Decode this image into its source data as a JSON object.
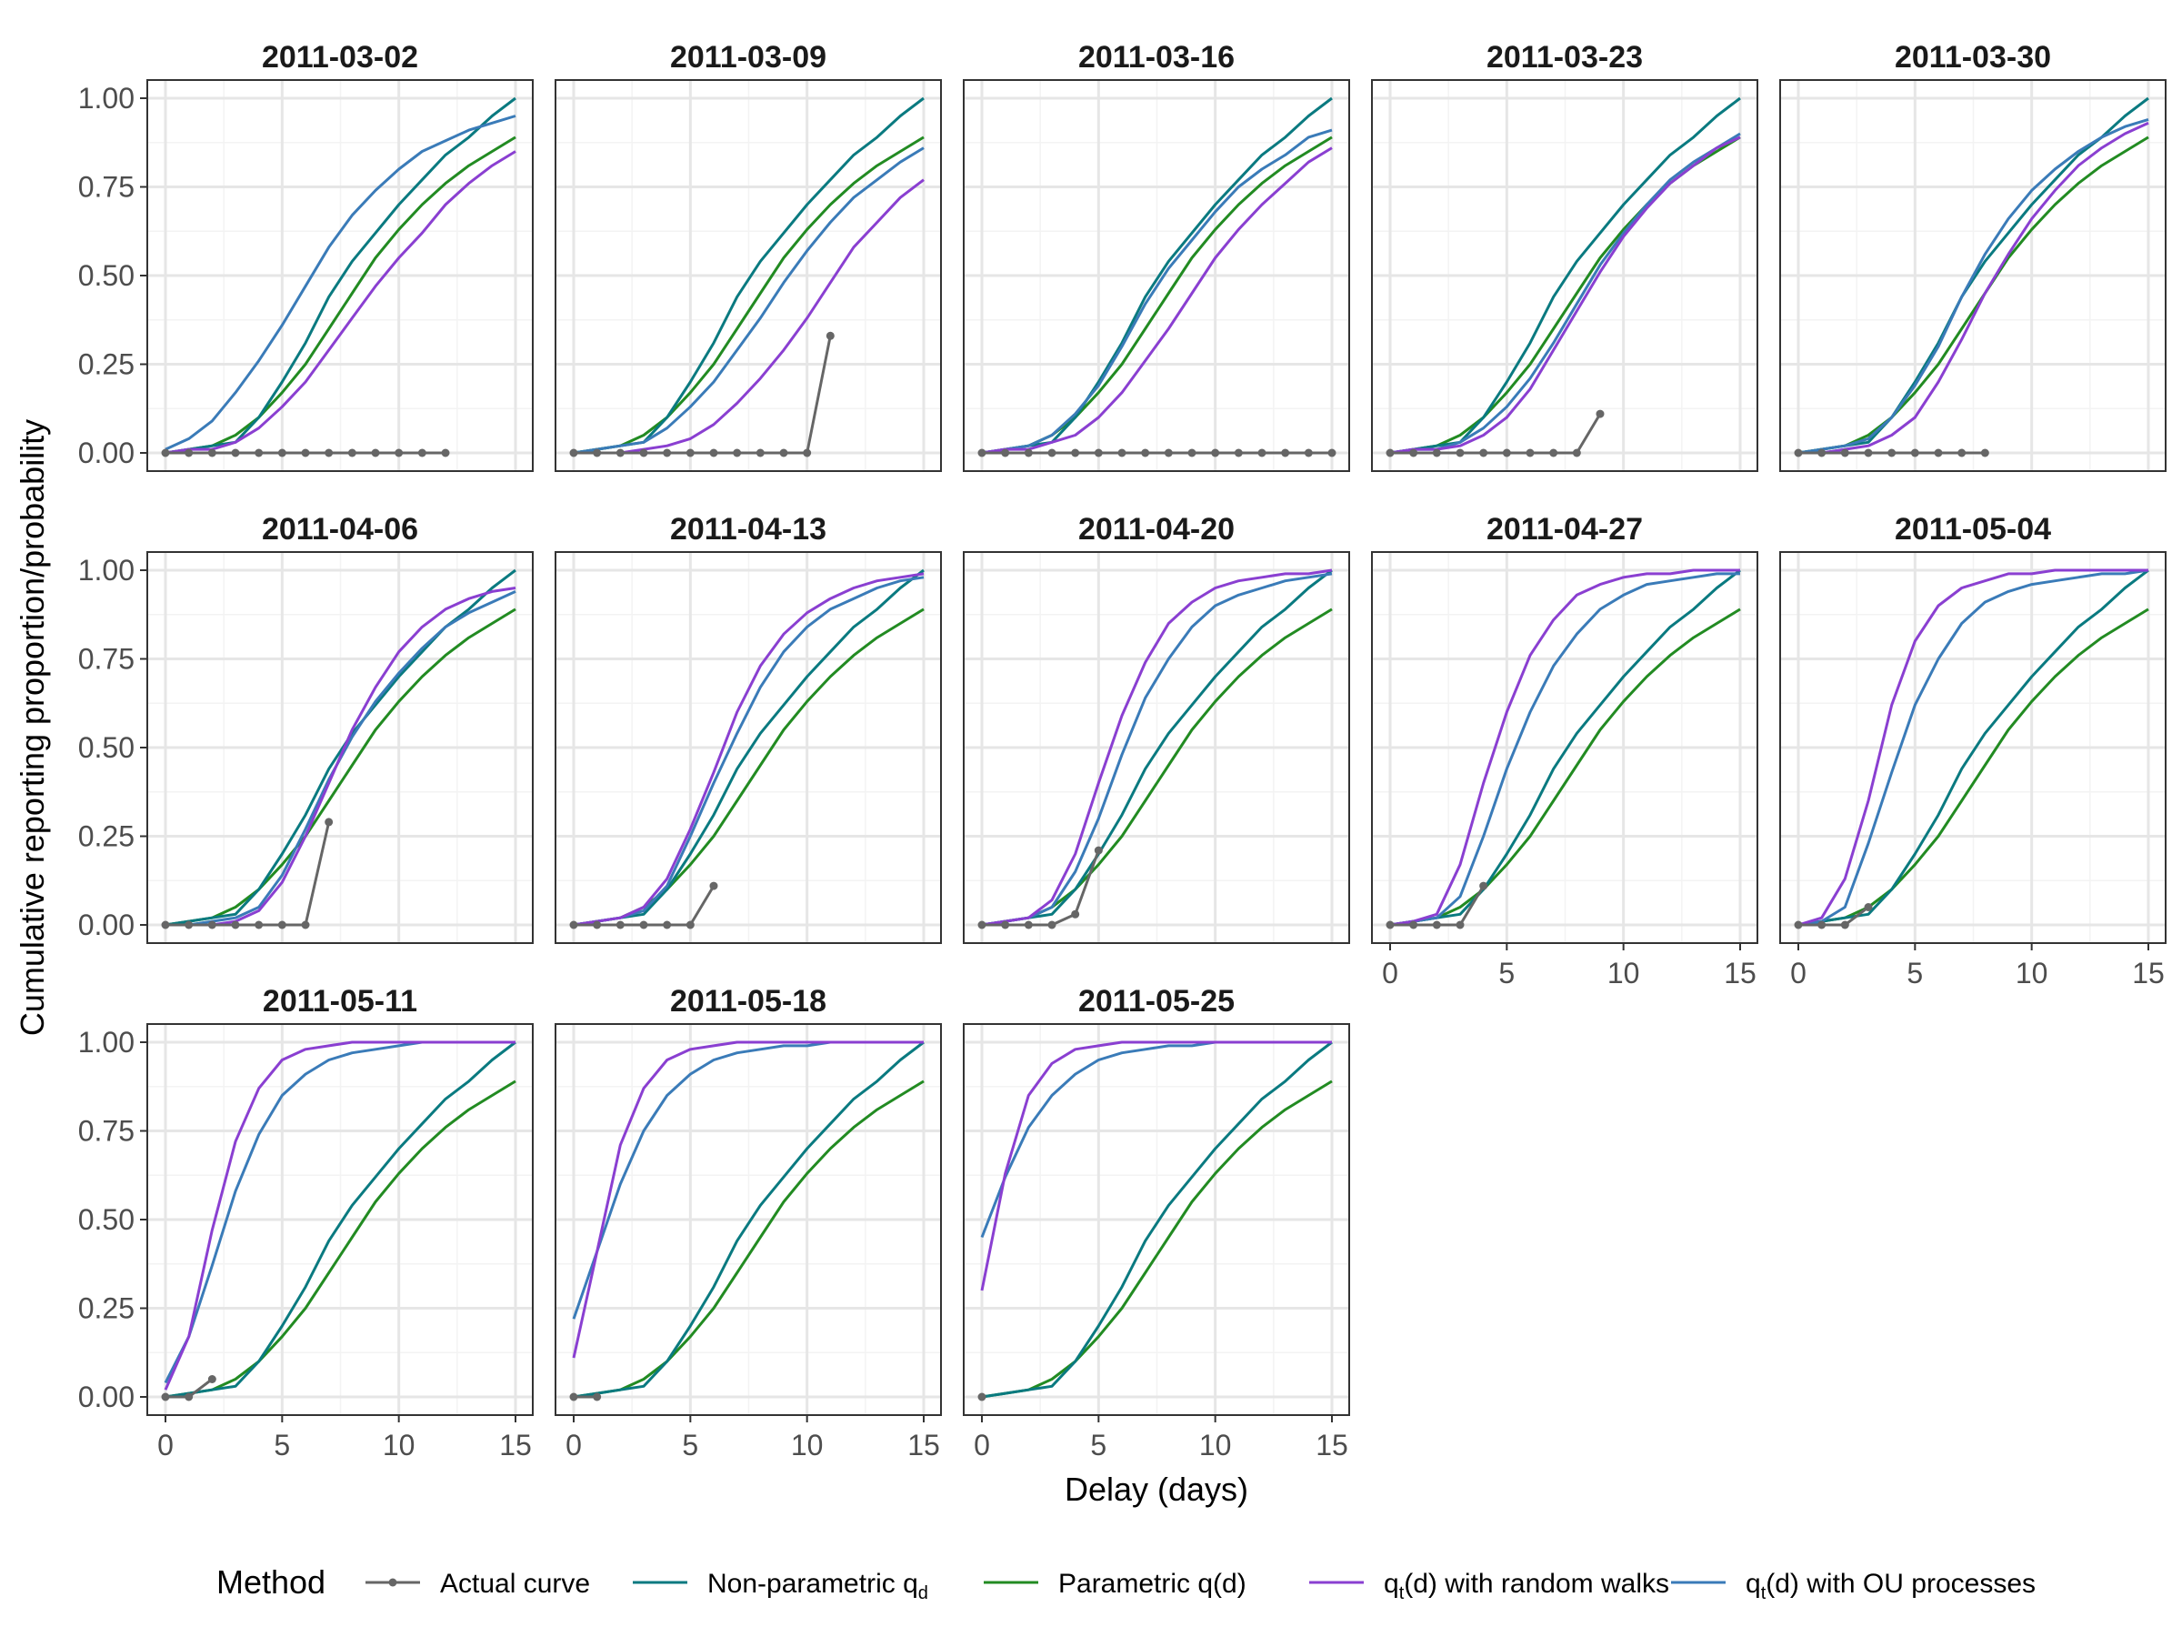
{
  "chart_data": {
    "type": "line",
    "facet_layout": "5 columns x 3 rows",
    "xlabel": "Delay (days)",
    "ylabel": "Cumulative reporting proportion/probability",
    "xlim": [
      0,
      15
    ],
    "ylim": [
      0,
      1
    ],
    "x_ticks": [
      0,
      5,
      10,
      15
    ],
    "x_tick_labels": [
      "0",
      "5",
      "10",
      "15"
    ],
    "y_ticks": [
      0,
      0.25,
      0.5,
      0.75,
      1
    ],
    "y_tick_labels": [
      "0.00",
      "0.25",
      "0.50",
      "0.75",
      "1.00"
    ],
    "grid": true,
    "legend": {
      "position": "bottom",
      "title": "Method",
      "items": [
        {
          "key": "actual",
          "label": "Actual curve",
          "color": "#666666",
          "marker": "point"
        },
        {
          "key": "nonparam",
          "label": "Non-parametric q",
          "sub": "d",
          "color": "#0a7a80"
        },
        {
          "key": "param",
          "label": "Parametric q(d)",
          "color": "#228b22"
        },
        {
          "key": "rw",
          "label_pre": "q",
          "sub": "t",
          "label_post": "(d) with random walks",
          "color": "#8a3fd1"
        },
        {
          "key": "ou",
          "label_pre": "q",
          "sub": "t",
          "label_post": "(d) with OU processes",
          "color": "#3a7bb8"
        }
      ]
    },
    "x": [
      0,
      1,
      2,
      3,
      4,
      5,
      6,
      7,
      8,
      9,
      10,
      11,
      12,
      13,
      14,
      15
    ],
    "shared_series": {
      "nonparam": [
        0,
        0.01,
        0.02,
        0.03,
        0.1,
        0.2,
        0.31,
        0.44,
        0.54,
        0.62,
        0.7,
        0.77,
        0.84,
        0.89,
        0.95,
        1.0
      ],
      "param": [
        0,
        0.01,
        0.02,
        0.05,
        0.1,
        0.17,
        0.25,
        0.35,
        0.45,
        0.55,
        0.63,
        0.7,
        0.76,
        0.81,
        0.85,
        0.89
      ]
    },
    "panels": [
      {
        "title": "2011-03-02",
        "actual": [
          0,
          0,
          0,
          0,
          0,
          0,
          0,
          0,
          0,
          0,
          0,
          0,
          0
        ],
        "rw": [
          0,
          0.01,
          0.01,
          0.03,
          0.07,
          0.13,
          0.2,
          0.29,
          0.38,
          0.47,
          0.55,
          0.62,
          0.7,
          0.76,
          0.81,
          0.85
        ],
        "ou": [
          0.01,
          0.04,
          0.09,
          0.17,
          0.26,
          0.36,
          0.47,
          0.58,
          0.67,
          0.74,
          0.8,
          0.85,
          0.88,
          0.91,
          0.93,
          0.95
        ]
      },
      {
        "title": "2011-03-09",
        "actual": [
          0,
          0,
          0,
          0,
          0,
          0,
          0,
          0,
          0,
          0,
          0,
          0.33
        ],
        "rw": [
          0,
          0,
          0,
          0.01,
          0.02,
          0.04,
          0.08,
          0.14,
          0.21,
          0.29,
          0.38,
          0.48,
          0.58,
          0.65,
          0.72,
          0.77
        ],
        "ou": [
          0,
          0.01,
          0.02,
          0.03,
          0.07,
          0.13,
          0.2,
          0.29,
          0.38,
          0.48,
          0.57,
          0.65,
          0.72,
          0.77,
          0.82,
          0.86
        ]
      },
      {
        "title": "2011-03-16",
        "actual": [
          0,
          0,
          0,
          0,
          0,
          0,
          0,
          0,
          0,
          0,
          0,
          0,
          0,
          0,
          0,
          0
        ],
        "rw": [
          0,
          0.01,
          0.01,
          0.03,
          0.05,
          0.1,
          0.17,
          0.26,
          0.35,
          0.45,
          0.55,
          0.63,
          0.7,
          0.76,
          0.82,
          0.86
        ],
        "ou": [
          0,
          0.01,
          0.02,
          0.05,
          0.11,
          0.19,
          0.3,
          0.42,
          0.52,
          0.6,
          0.68,
          0.75,
          0.8,
          0.84,
          0.89,
          0.91
        ]
      },
      {
        "title": "2011-03-23",
        "actual": [
          0,
          0,
          0,
          0,
          0,
          0,
          0,
          0,
          0,
          0.11
        ],
        "rw": [
          0,
          0.01,
          0.01,
          0.02,
          0.05,
          0.1,
          0.18,
          0.29,
          0.4,
          0.51,
          0.61,
          0.69,
          0.76,
          0.81,
          0.86,
          0.89
        ],
        "ou": [
          0,
          0.01,
          0.01,
          0.03,
          0.07,
          0.13,
          0.21,
          0.31,
          0.42,
          0.53,
          0.62,
          0.7,
          0.77,
          0.82,
          0.86,
          0.9
        ]
      },
      {
        "title": "2011-03-30",
        "actual": [
          0,
          0,
          0,
          0,
          0,
          0,
          0,
          0,
          0
        ],
        "rw": [
          0,
          0,
          0.01,
          0.02,
          0.05,
          0.1,
          0.2,
          0.32,
          0.45,
          0.56,
          0.66,
          0.74,
          0.81,
          0.86,
          0.9,
          0.93
        ],
        "ou": [
          0,
          0.01,
          0.02,
          0.04,
          0.1,
          0.19,
          0.3,
          0.44,
          0.56,
          0.66,
          0.74,
          0.8,
          0.85,
          0.89,
          0.92,
          0.94
        ]
      },
      {
        "title": "2011-04-06",
        "actual": [
          0,
          0,
          0,
          0,
          0,
          0,
          0,
          0.29
        ],
        "rw": [
          0,
          0,
          0,
          0.01,
          0.04,
          0.12,
          0.25,
          0.4,
          0.55,
          0.67,
          0.77,
          0.84,
          0.89,
          0.92,
          0.94,
          0.95
        ],
        "ou": [
          0,
          0,
          0.01,
          0.02,
          0.05,
          0.14,
          0.27,
          0.41,
          0.53,
          0.63,
          0.71,
          0.78,
          0.84,
          0.88,
          0.91,
          0.94
        ]
      },
      {
        "title": "2011-04-13",
        "actual": [
          0,
          0,
          0,
          0,
          0,
          0,
          0.11
        ],
        "rw": [
          0,
          0.01,
          0.02,
          0.05,
          0.13,
          0.27,
          0.43,
          0.6,
          0.73,
          0.82,
          0.88,
          0.92,
          0.95,
          0.97,
          0.98,
          0.99
        ],
        "ou": [
          0,
          0.01,
          0.02,
          0.04,
          0.11,
          0.25,
          0.4,
          0.54,
          0.67,
          0.77,
          0.84,
          0.89,
          0.92,
          0.95,
          0.97,
          0.98
        ]
      },
      {
        "title": "2011-04-20",
        "actual": [
          0,
          0,
          0,
          0,
          0.03,
          0.21
        ],
        "rw": [
          0,
          0.01,
          0.02,
          0.07,
          0.2,
          0.4,
          0.59,
          0.74,
          0.85,
          0.91,
          0.95,
          0.97,
          0.98,
          0.99,
          0.99,
          1.0
        ],
        "ou": [
          0,
          0.01,
          0.02,
          0.05,
          0.15,
          0.3,
          0.48,
          0.64,
          0.75,
          0.84,
          0.9,
          0.93,
          0.95,
          0.97,
          0.98,
          0.99
        ]
      },
      {
        "title": "2011-04-27",
        "actual": [
          0,
          0,
          0,
          0,
          0.11
        ],
        "rw": [
          0,
          0.01,
          0.03,
          0.17,
          0.4,
          0.6,
          0.76,
          0.86,
          0.93,
          0.96,
          0.98,
          0.99,
          0.99,
          1.0,
          1.0,
          1.0
        ],
        "ou": [
          0,
          0.01,
          0.02,
          0.08,
          0.25,
          0.44,
          0.6,
          0.73,
          0.82,
          0.89,
          0.93,
          0.96,
          0.97,
          0.98,
          0.99,
          0.99
        ]
      },
      {
        "title": "2011-05-04",
        "actual": [
          0,
          0,
          0,
          0.05
        ],
        "rw": [
          0,
          0.02,
          0.13,
          0.35,
          0.62,
          0.8,
          0.9,
          0.95,
          0.97,
          0.99,
          0.99,
          1.0,
          1.0,
          1.0,
          1.0,
          1.0
        ],
        "ou": [
          0,
          0.01,
          0.05,
          0.23,
          0.43,
          0.62,
          0.75,
          0.85,
          0.91,
          0.94,
          0.96,
          0.97,
          0.98,
          0.99,
          0.99,
          1.0
        ]
      },
      {
        "title": "2011-05-11",
        "actual": [
          0,
          0,
          0.05
        ],
        "rw": [
          0.02,
          0.17,
          0.47,
          0.72,
          0.87,
          0.95,
          0.98,
          0.99,
          1.0,
          1.0,
          1.0,
          1.0,
          1.0,
          1.0,
          1.0,
          1.0
        ],
        "ou": [
          0.04,
          0.17,
          0.37,
          0.58,
          0.74,
          0.85,
          0.91,
          0.95,
          0.97,
          0.98,
          0.99,
          1.0,
          1.0,
          1.0,
          1.0,
          1.0
        ]
      },
      {
        "title": "2011-05-18",
        "actual": [
          0,
          0
        ],
        "rw": [
          0.11,
          0.41,
          0.71,
          0.87,
          0.95,
          0.98,
          0.99,
          1.0,
          1.0,
          1.0,
          1.0,
          1.0,
          1.0,
          1.0,
          1.0,
          1.0
        ],
        "ou": [
          0.22,
          0.41,
          0.6,
          0.75,
          0.85,
          0.91,
          0.95,
          0.97,
          0.98,
          0.99,
          0.99,
          1.0,
          1.0,
          1.0,
          1.0,
          1.0
        ]
      },
      {
        "title": "2011-05-25",
        "actual": [
          0
        ],
        "rw": [
          0.3,
          0.63,
          0.85,
          0.94,
          0.98,
          0.99,
          1.0,
          1.0,
          1.0,
          1.0,
          1.0,
          1.0,
          1.0,
          1.0,
          1.0,
          1.0
        ],
        "ou": [
          0.45,
          0.62,
          0.76,
          0.85,
          0.91,
          0.95,
          0.97,
          0.98,
          0.99,
          0.99,
          1.0,
          1.0,
          1.0,
          1.0,
          1.0,
          1.0
        ]
      }
    ]
  }
}
